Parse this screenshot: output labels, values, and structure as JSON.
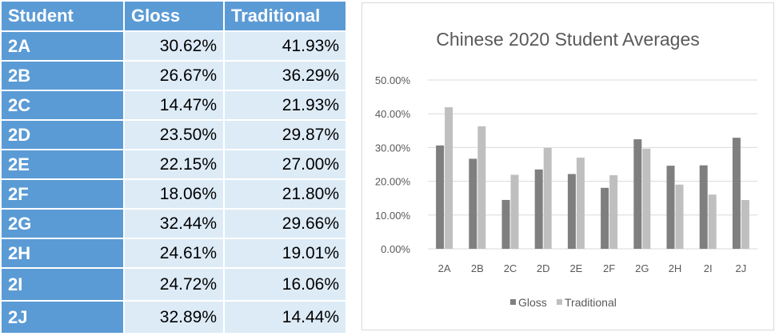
{
  "table": {
    "headers": [
      "Student",
      "Gloss",
      "Traditional"
    ],
    "rows": [
      {
        "student": "2A",
        "gloss": "30.62%",
        "traditional": "41.93%"
      },
      {
        "student": "2B",
        "gloss": "26.67%",
        "traditional": "36.29%"
      },
      {
        "student": "2C",
        "gloss": "14.47%",
        "traditional": "21.93%"
      },
      {
        "student": "2D",
        "gloss": "23.50%",
        "traditional": "29.87%"
      },
      {
        "student": "2E",
        "gloss": "22.15%",
        "traditional": "27.00%"
      },
      {
        "student": "2F",
        "gloss": "18.06%",
        "traditional": "21.80%"
      },
      {
        "student": "2G",
        "gloss": "32.44%",
        "traditional": "29.66%"
      },
      {
        "student": "2H",
        "gloss": "24.61%",
        "traditional": "19.01%"
      },
      {
        "student": "2I",
        "gloss": "24.72%",
        "traditional": "16.06%"
      },
      {
        "student": "2J",
        "gloss": "32.89%",
        "traditional": "14.44%"
      }
    ]
  },
  "chart_data": {
    "type": "bar",
    "title": "Chinese 2020 Student Averages",
    "categories": [
      "2A",
      "2B",
      "2C",
      "2D",
      "2E",
      "2F",
      "2G",
      "2H",
      "2I",
      "2J"
    ],
    "series": [
      {
        "name": "Gloss",
        "color": "#7f7f7f",
        "values": [
          30.62,
          26.67,
          14.47,
          23.5,
          22.15,
          18.06,
          32.44,
          24.61,
          24.72,
          32.89
        ]
      },
      {
        "name": "Traditional",
        "color": "#bfbfbf",
        "values": [
          41.93,
          36.29,
          21.93,
          29.87,
          27.0,
          21.8,
          29.66,
          19.01,
          16.06,
          14.44
        ]
      }
    ],
    "ylim": [
      0,
      50
    ],
    "yticks": [
      "0.00%",
      "10.00%",
      "20.00%",
      "30.00%",
      "40.00%",
      "50.00%"
    ],
    "grid": true,
    "legend": "bottom",
    "gridline_color": "#d9d9d9"
  }
}
